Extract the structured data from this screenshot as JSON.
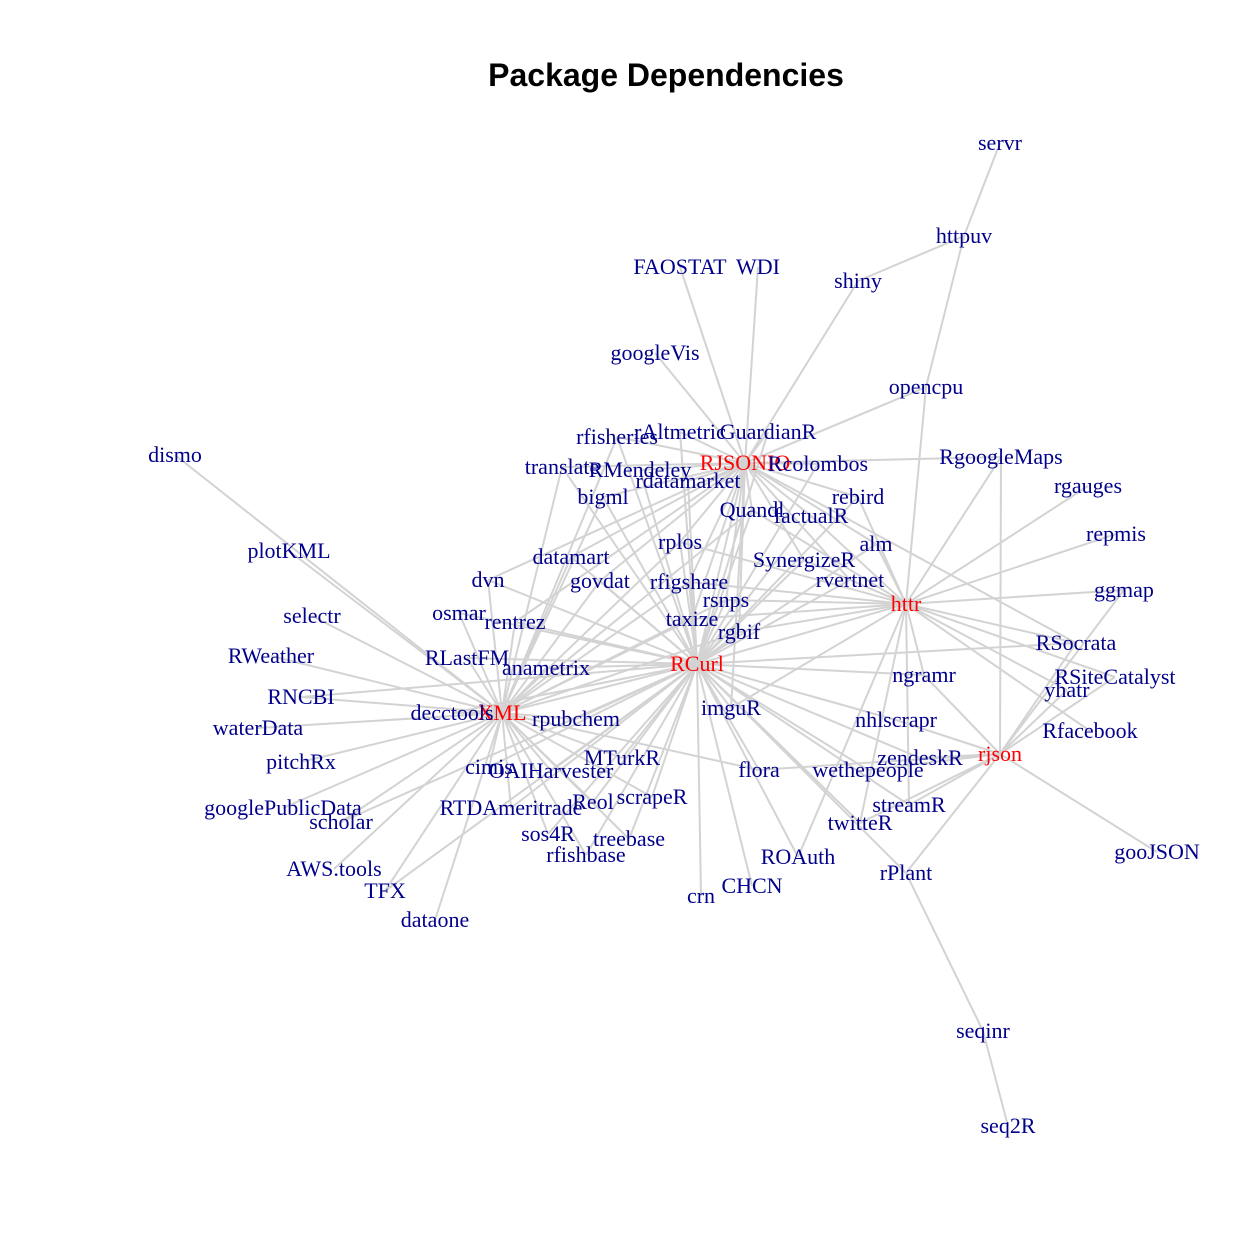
{
  "title": "Package Dependencies",
  "colors": {
    "hub": "#ff0000",
    "leaf": "#00008b",
    "edge": "#d3d3d3"
  },
  "hubs": [
    "XML",
    "RCurl",
    "RJSONIO",
    "httr",
    "rjson"
  ],
  "nodes": [
    "XML",
    "RCurl",
    "RJSONIO",
    "httr",
    "rjson",
    "servr",
    "httpuv",
    "FAOSTAT",
    "WDI",
    "shiny",
    "googleVis",
    "opencpu",
    "rAltmetric",
    "GuardianR",
    "rfisheries",
    "translate",
    "RMendeley",
    "Rcolombos",
    "RgoogleMaps",
    "rdatamarket",
    "bigml",
    "rebird",
    "rgauges",
    "dismo",
    "Quandl",
    "factualR",
    "alm",
    "repmis",
    "plotKML",
    "datamart",
    "rplos",
    "SynergizeR",
    "dvn",
    "govdat",
    "rfigshare",
    "rvertnet",
    "ggmap",
    "selectr",
    "osmar",
    "rsnps",
    "rentrez",
    "taxize",
    "rgbif",
    "RSocrata",
    "RWeather",
    "RLastFM",
    "anametrix",
    "ngramr",
    "RSiteCatalyst",
    "yhatr",
    "RNCBI",
    "decctools",
    "rpubchem",
    "imguR",
    "waterData",
    "nhlscrapr",
    "Rfacebook",
    "MTurkR",
    "zendeskR",
    "pitchRx",
    "cimis",
    "OAIHarvester",
    "flora",
    "wethepeople",
    "googlePublicData",
    "RTDAmeritrade",
    "Reol",
    "scrapeR",
    "streamR",
    "scholar",
    "twitteR",
    "sos4R",
    "treebase",
    "rfishbase",
    "ROAuth",
    "gooJSON",
    "rPlant",
    "AWS.tools",
    "CHCN",
    "crn",
    "TFX",
    "dataone",
    "seqinr",
    "seq2R"
  ],
  "edges": [
    [
      "httpuv",
      "servr"
    ],
    [
      "shiny",
      "httpuv"
    ],
    [
      "opencpu",
      "httpuv"
    ],
    [
      "RJSONIO",
      "shiny"
    ],
    [
      "RJSONIO",
      "opencpu"
    ],
    [
      "RJSONIO",
      "FAOSTAT"
    ],
    [
      "RJSONIO",
      "WDI"
    ],
    [
      "RJSONIO",
      "googleVis"
    ],
    [
      "RJSONIO",
      "rAltmetric"
    ],
    [
      "RJSONIO",
      "GuardianR"
    ],
    [
      "RJSONIO",
      "rfisheries"
    ],
    [
      "RJSONIO",
      "translate"
    ],
    [
      "RJSONIO",
      "RMendeley"
    ],
    [
      "RJSONIO",
      "Rcolombos"
    ],
    [
      "RJSONIO",
      "RgoogleMaps"
    ],
    [
      "RJSONIO",
      "rdatamarket"
    ],
    [
      "RJSONIO",
      "bigml"
    ],
    [
      "RJSONIO",
      "rebird"
    ],
    [
      "RJSONIO",
      "Quandl"
    ],
    [
      "RJSONIO",
      "factualR"
    ],
    [
      "RJSONIO",
      "alm"
    ],
    [
      "RJSONIO",
      "datamart"
    ],
    [
      "RJSONIO",
      "rplos"
    ],
    [
      "RJSONIO",
      "SynergizeR"
    ],
    [
      "RJSONIO",
      "govdat"
    ],
    [
      "RJSONIO",
      "rfigshare"
    ],
    [
      "RJSONIO",
      "rvertnet"
    ],
    [
      "RJSONIO",
      "rsnps"
    ],
    [
      "RJSONIO",
      "taxize"
    ],
    [
      "RJSONIO",
      "rgbif"
    ],
    [
      "RJSONIO",
      "dvn"
    ],
    [
      "RJSONIO",
      "RCurl"
    ],
    [
      "RJSONIO",
      "imguR"
    ],
    [
      "RJSONIO",
      "RSocrata"
    ],
    [
      "RJSONIO",
      "rentrez"
    ],
    [
      "RCurl",
      "rAltmetric"
    ],
    [
      "RCurl",
      "GuardianR"
    ],
    [
      "RCurl",
      "rfisheries"
    ],
    [
      "RCurl",
      "translate"
    ],
    [
      "RCurl",
      "RMendeley"
    ],
    [
      "RCurl",
      "Rcolombos"
    ],
    [
      "RCurl",
      "rdatamarket"
    ],
    [
      "RCurl",
      "bigml"
    ],
    [
      "RCurl",
      "rebird"
    ],
    [
      "RCurl",
      "Quandl"
    ],
    [
      "RCurl",
      "factualR"
    ],
    [
      "RCurl",
      "alm"
    ],
    [
      "RCurl",
      "datamart"
    ],
    [
      "RCurl",
      "rplos"
    ],
    [
      "RCurl",
      "SynergizeR"
    ],
    [
      "RCurl",
      "govdat"
    ],
    [
      "RCurl",
      "rfigshare"
    ],
    [
      "RCurl",
      "rvertnet"
    ],
    [
      "RCurl",
      "rsnps"
    ],
    [
      "RCurl",
      "taxize"
    ],
    [
      "RCurl",
      "rgbif"
    ],
    [
      "RCurl",
      "dvn"
    ],
    [
      "RCurl",
      "osmar"
    ],
    [
      "RCurl",
      "rentrez"
    ],
    [
      "RCurl",
      "RLastFM"
    ],
    [
      "RCurl",
      "anametrix"
    ],
    [
      "RCurl",
      "ngramr"
    ],
    [
      "RCurl",
      "decctools"
    ],
    [
      "RCurl",
      "rpubchem"
    ],
    [
      "RCurl",
      "imguR"
    ],
    [
      "RCurl",
      "nhlscrapr"
    ],
    [
      "RCurl",
      "MTurkR"
    ],
    [
      "RCurl",
      "zendeskR"
    ],
    [
      "RCurl",
      "cimis"
    ],
    [
      "RCurl",
      "OAIHarvester"
    ],
    [
      "RCurl",
      "flora"
    ],
    [
      "RCurl",
      "wethepeople"
    ],
    [
      "RCurl",
      "RTDAmeritrade"
    ],
    [
      "RCurl",
      "Reol"
    ],
    [
      "RCurl",
      "scrapeR"
    ],
    [
      "RCurl",
      "streamR"
    ],
    [
      "RCurl",
      "twitteR"
    ],
    [
      "RCurl",
      "sos4R"
    ],
    [
      "RCurl",
      "treebase"
    ],
    [
      "RCurl",
      "rfishbase"
    ],
    [
      "RCurl",
      "ROAuth"
    ],
    [
      "RCurl",
      "rPlant"
    ],
    [
      "RCurl",
      "CHCN"
    ],
    [
      "RCurl",
      "crn"
    ],
    [
      "RCurl",
      "httr"
    ],
    [
      "RCurl",
      "XML"
    ],
    [
      "RCurl",
      "RSocrata"
    ],
    [
      "RCurl",
      "scholar"
    ],
    [
      "RCurl",
      "TFX"
    ],
    [
      "RCurl",
      "RNCBI"
    ],
    [
      "XML",
      "dismo"
    ],
    [
      "XML",
      "plotKML"
    ],
    [
      "XML",
      "selectr"
    ],
    [
      "XML",
      "RWeather"
    ],
    [
      "XML",
      "RNCBI"
    ],
    [
      "XML",
      "waterData"
    ],
    [
      "XML",
      "pitchRx"
    ],
    [
      "XML",
      "googlePublicData"
    ],
    [
      "XML",
      "scholar"
    ],
    [
      "XML",
      "AWS.tools"
    ],
    [
      "XML",
      "TFX"
    ],
    [
      "XML",
      "dataone"
    ],
    [
      "XML",
      "decctools"
    ],
    [
      "XML",
      "cimis"
    ],
    [
      "XML",
      "OAIHarvester"
    ],
    [
      "XML",
      "RTDAmeritrade"
    ],
    [
      "XML",
      "sos4R"
    ],
    [
      "XML",
      "rfishbase"
    ],
    [
      "XML",
      "Reol"
    ],
    [
      "XML",
      "treebase"
    ],
    [
      "XML",
      "rpubchem"
    ],
    [
      "XML",
      "RLastFM"
    ],
    [
      "XML",
      "osmar"
    ],
    [
      "XML",
      "dvn"
    ],
    [
      "XML",
      "rentrez"
    ],
    [
      "XML",
      "anametrix"
    ],
    [
      "XML",
      "datamart"
    ],
    [
      "XML",
      "govdat"
    ],
    [
      "XML",
      "bigml"
    ],
    [
      "XML",
      "translate"
    ],
    [
      "XML",
      "rfisheries"
    ],
    [
      "XML",
      "rplos"
    ],
    [
      "XML",
      "taxize"
    ],
    [
      "XML",
      "rgbif"
    ],
    [
      "XML",
      "scrapeR"
    ],
    [
      "XML",
      "flora"
    ],
    [
      "XML",
      "MTurkR"
    ],
    [
      "XML",
      "Quandl"
    ],
    [
      "XML",
      "rsnps"
    ],
    [
      "XML",
      "rfigshare"
    ],
    [
      "httr",
      "RgoogleMaps"
    ],
    [
      "httr",
      "rgauges"
    ],
    [
      "httr",
      "repmis"
    ],
    [
      "httr",
      "ggmap"
    ],
    [
      "httr",
      "RSocrata"
    ],
    [
      "httr",
      "RSiteCatalyst"
    ],
    [
      "httr",
      "yhatr"
    ],
    [
      "httr",
      "Rfacebook"
    ],
    [
      "httr",
      "ngramr"
    ],
    [
      "httr",
      "opencpu"
    ],
    [
      "httr",
      "alm"
    ],
    [
      "httr",
      "rebird"
    ],
    [
      "httr",
      "factualR"
    ],
    [
      "httr",
      "SynergizeR"
    ],
    [
      "httr",
      "rvertnet"
    ],
    [
      "httr",
      "rsnps"
    ],
    [
      "httr",
      "rgbif"
    ],
    [
      "httr",
      "taxize"
    ],
    [
      "httr",
      "imguR"
    ],
    [
      "httr",
      "streamR"
    ],
    [
      "httr",
      "rfigshare"
    ],
    [
      "httr",
      "rplos"
    ],
    [
      "httr",
      "Quandl"
    ],
    [
      "httr",
      "twitteR"
    ],
    [
      "httr",
      "ROAuth"
    ],
    [
      "rjson",
      "RSiteCatalyst"
    ],
    [
      "rjson",
      "yhatr"
    ],
    [
      "rjson",
      "RgoogleMaps"
    ],
    [
      "rjson",
      "gooJSON"
    ],
    [
      "rjson",
      "rPlant"
    ],
    [
      "rjson",
      "streamR"
    ],
    [
      "rjson",
      "zendeskR"
    ],
    [
      "rjson",
      "wethepeople"
    ],
    [
      "rjson",
      "flora"
    ],
    [
      "rjson",
      "twitteR"
    ],
    [
      "rjson",
      "ngramr"
    ],
    [
      "rjson",
      "ggmap"
    ],
    [
      "rjson",
      "RSocrata"
    ],
    [
      "rjson",
      "nhlscrapr"
    ],
    [
      "rPlant",
      "seqinr"
    ],
    [
      "seqinr",
      "seq2R"
    ]
  ]
}
